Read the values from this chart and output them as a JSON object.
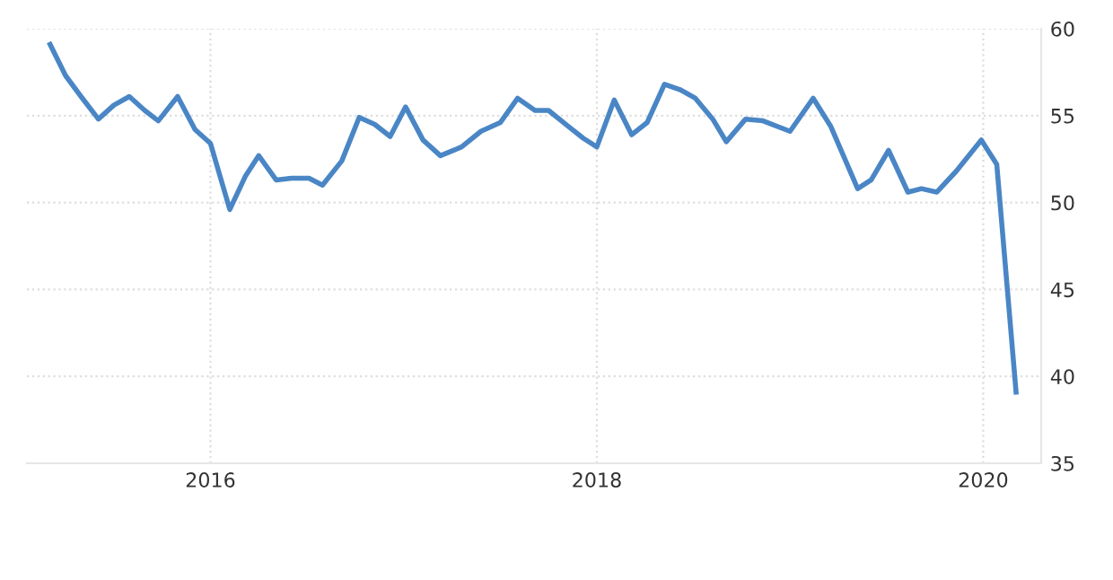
{
  "chart_data": {
    "type": "line",
    "color": "#4a86c5",
    "x": [
      2015.17,
      2015.25,
      2015.33,
      2015.42,
      2015.5,
      2015.58,
      2015.66,
      2015.73,
      2015.83,
      2015.92,
      2016.0,
      2016.1,
      2016.18,
      2016.25,
      2016.34,
      2016.42,
      2016.51,
      2016.58,
      2016.68,
      2016.77,
      2016.85,
      2016.93,
      2017.01,
      2017.1,
      2017.19,
      2017.3,
      2017.4,
      2017.5,
      2017.59,
      2017.68,
      2017.75,
      2017.85,
      2017.93,
      2018.0,
      2018.09,
      2018.18,
      2018.26,
      2018.35,
      2018.43,
      2018.51,
      2018.6,
      2018.67,
      2018.77,
      2018.86,
      2019.0,
      2019.12,
      2019.21,
      2019.35,
      2019.42,
      2019.51,
      2019.61,
      2019.68,
      2019.76,
      2019.86,
      2019.99,
      2020.07,
      2020.17
    ],
    "values": [
      59.1,
      57.3,
      56.1,
      54.8,
      55.6,
      56.1,
      55.3,
      54.7,
      56.1,
      54.2,
      53.4,
      49.6,
      51.5,
      52.7,
      51.3,
      51.4,
      51.4,
      51.0,
      52.4,
      54.9,
      54.5,
      53.8,
      55.5,
      53.6,
      52.7,
      53.2,
      54.1,
      54.6,
      56.0,
      55.3,
      55.3,
      54.4,
      53.7,
      53.2,
      55.9,
      53.9,
      54.6,
      56.8,
      56.5,
      56.0,
      54.8,
      53.5,
      54.8,
      54.7,
      54.1,
      56.0,
      54.4,
      50.8,
      51.3,
      53.0,
      50.6,
      50.8,
      50.6,
      51.8,
      53.6,
      52.2,
      39.1
    ],
    "xlim": [
      2015.05,
      2020.3
    ],
    "ylim": [
      35,
      60
    ],
    "xticks": [
      2016,
      2018,
      2020
    ],
    "yticks": [
      35,
      40,
      45,
      50,
      55,
      60
    ],
    "grid": true,
    "line_style": "solid",
    "marker": "none"
  }
}
